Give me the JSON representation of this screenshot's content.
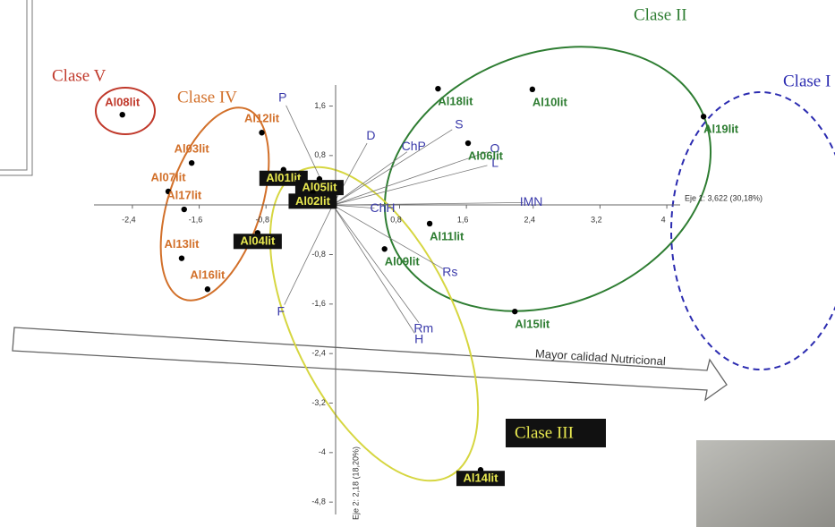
{
  "chart_data": {
    "type": "biplot",
    "x_label": "Eje 1: 3,622 (30,18%)",
    "y_label": "Eje 2: 2,18 (18,20%)",
    "xlim": [
      -2.86,
      4.16
    ],
    "ylim": [
      -5.0,
      1.94
    ],
    "xticks": [
      {
        "value": -2.4,
        "label": "-2,4"
      },
      {
        "value": -1.6,
        "label": "-1,6"
      },
      {
        "value": -0.8,
        "label": "-0,8"
      },
      {
        "value": 0.8,
        "label": "0,8"
      },
      {
        "value": 1.6,
        "label": "1,6"
      },
      {
        "value": 2.4,
        "label": "2,4"
      },
      {
        "value": 3.2,
        "label": "3,2"
      },
      {
        "value": 4,
        "label": "4"
      }
    ],
    "yticks": [
      {
        "value": 1.6,
        "label": "1,6"
      },
      {
        "value": 0.8,
        "label": "0,8"
      },
      {
        "value": -0.8,
        "label": "-0,8"
      },
      {
        "value": -1.6,
        "label": "-1,6"
      },
      {
        "value": -2.4,
        "label": "-2,4"
      },
      {
        "value": -3.2,
        "label": "-3,2"
      },
      {
        "value": -4,
        "label": "-4"
      },
      {
        "value": -4.8,
        "label": "-4,8"
      }
    ],
    "series": [
      {
        "name": "Clase V",
        "color": "#c0392b",
        "labels": [
          "Al08lit"
        ],
        "x": [
          -2.52
        ],
        "y": [
          1.46
        ]
      },
      {
        "name": "Clase IV",
        "color": "#d2702a",
        "labels": [
          "Al12lit",
          "Al03lit",
          "Al07lit",
          "Al17lit",
          "Al13lit",
          "Al16lit"
        ],
        "x": [
          -0.85,
          -1.69,
          -1.97,
          -1.78,
          -1.81,
          -1.5
        ],
        "y": [
          1.17,
          0.68,
          0.22,
          -0.07,
          -0.86,
          -1.36
        ]
      },
      {
        "name": "Clase III",
        "color": "#e8e850",
        "labels": [
          "Al01lit",
          "Al05lit",
          "Al02lit",
          "Al04lit",
          "Al14lit"
        ],
        "x": [
          -0.59,
          -0.16,
          -0.24,
          -0.9,
          1.77
        ],
        "y": [
          0.57,
          0.42,
          0.2,
          -0.45,
          -4.28
        ]
      },
      {
        "name": "Clase II",
        "color": "#2e7d32",
        "labels": [
          "Al18lit",
          "Al10lit",
          "Al06lit",
          "Al19lit",
          "Al11lit",
          "Al09lit",
          "Al15lit"
        ],
        "x": [
          1.26,
          2.39,
          1.62,
          4.44,
          1.16,
          0.62,
          2.18
        ],
        "y": [
          1.88,
          1.87,
          1.0,
          1.43,
          -0.3,
          -0.71,
          -1.72
        ]
      }
    ],
    "vectors": {
      "color": "#3a3aaa",
      "labels": [
        "P",
        "D",
        "ChP",
        "S",
        "O",
        "L",
        "IMN",
        "ChH",
        "Rs",
        "Rm",
        "H",
        "F"
      ],
      "x": [
        -0.56,
        0.41,
        0.89,
        1.43,
        1.85,
        1.85,
        2.28,
        0.5,
        1.32,
        1.03,
        0.98,
        -0.58
      ],
      "y": [
        1.61,
        1.0,
        0.86,
        1.22,
        0.86,
        0.64,
        0.04,
        -0.05,
        -1.03,
        -1.9,
        -2.07,
        -1.61
      ]
    },
    "annotations": [
      "Clase I",
      "Mayor calidad Nutricional"
    ]
  }
}
